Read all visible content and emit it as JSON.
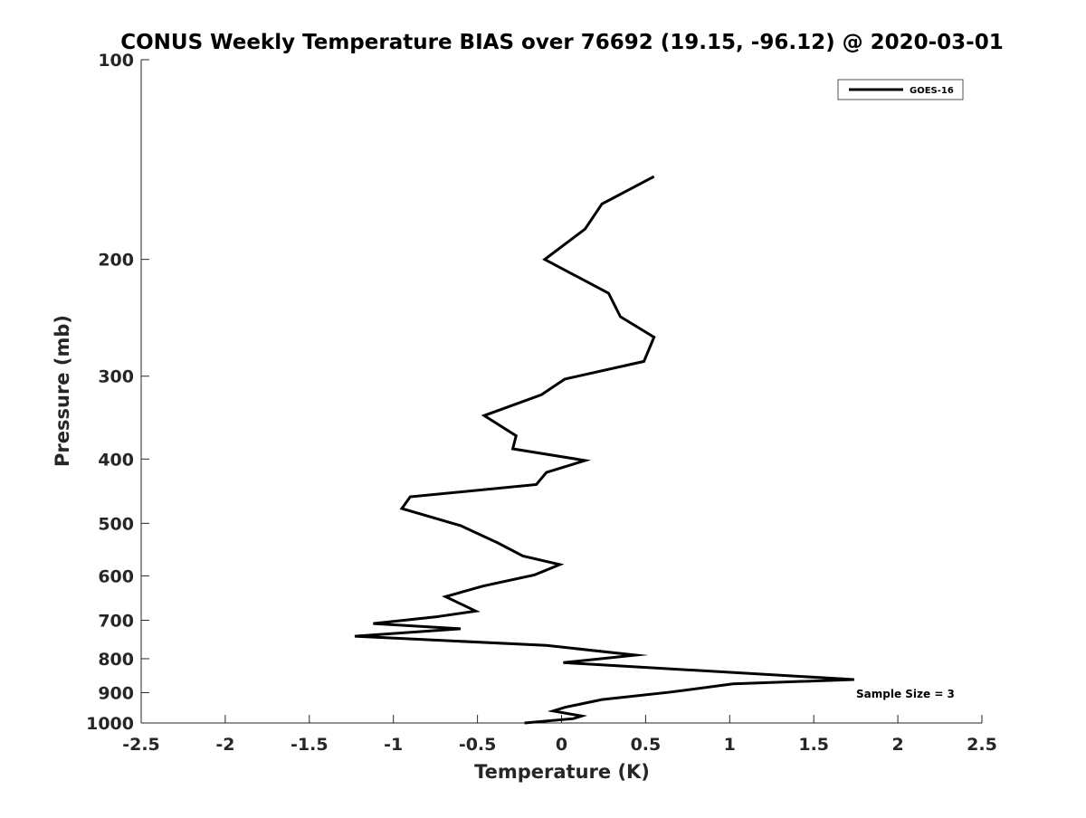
{
  "chart_data": {
    "type": "line",
    "title": "CONUS Weekly Temperature BIAS over 76692 (19.15, -96.12) @ 2020-03-01",
    "xlabel": "Temperature (K)",
    "ylabel": "Pressure (mb)",
    "xlim": [
      -2.5,
      2.5
    ],
    "ylim": [
      100,
      1000
    ],
    "yscale": "log",
    "y_reversed": true,
    "grid": false,
    "legend_position": "top-right",
    "x_ticks": [
      -2.5,
      -2,
      -1.5,
      -1,
      -0.5,
      0,
      0.5,
      1,
      1.5,
      2,
      2.5
    ],
    "x_tick_labels": [
      "-2.5",
      "-2",
      "-1.5",
      "-1",
      "-0.5",
      "0",
      "0.5",
      "1",
      "1.5",
      "2",
      "2.5"
    ],
    "y_ticks": [
      100,
      200,
      300,
      400,
      500,
      600,
      700,
      800,
      900,
      1000
    ],
    "y_tick_labels": [
      "100",
      "200",
      "300",
      "400",
      "500",
      "600",
      "700",
      "800",
      "900",
      "1000"
    ],
    "annotation": "Sample Size = 3",
    "series": [
      {
        "name": "GOES-16",
        "color": "#000000",
        "points": [
          [
            0.55,
            150
          ],
          [
            0.24,
            165
          ],
          [
            0.14,
            180
          ],
          [
            -0.1,
            200
          ],
          [
            0.28,
            225
          ],
          [
            0.35,
            244
          ],
          [
            0.55,
            262
          ],
          [
            0.49,
            285
          ],
          [
            0.02,
            303
          ],
          [
            -0.12,
            320
          ],
          [
            -0.46,
            344
          ],
          [
            -0.27,
            369
          ],
          [
            -0.29,
            386
          ],
          [
            0.14,
            402
          ],
          [
            -0.09,
            419
          ],
          [
            -0.15,
            437
          ],
          [
            -0.9,
            456
          ],
          [
            -0.95,
            475
          ],
          [
            -0.6,
            504
          ],
          [
            -0.38,
            535
          ],
          [
            -0.23,
            560
          ],
          [
            -0.01,
            577
          ],
          [
            -0.16,
            598
          ],
          [
            -0.47,
            622
          ],
          [
            -0.69,
            645
          ],
          [
            -0.51,
            678
          ],
          [
            -0.75,
            692
          ],
          [
            -1.12,
            708
          ],
          [
            -0.6,
            721
          ],
          [
            -1.23,
            740
          ],
          [
            -0.09,
            764
          ],
          [
            0.44,
            790
          ],
          [
            0.01,
            811
          ],
          [
            1.74,
            860
          ],
          [
            1.02,
            873
          ],
          [
            0.65,
            898
          ],
          [
            0.24,
            922
          ],
          [
            0.02,
            947
          ],
          [
            -0.05,
            959
          ],
          [
            0.12,
            976
          ],
          [
            0.07,
            985
          ],
          [
            -0.22,
            1000
          ]
        ]
      }
    ]
  }
}
